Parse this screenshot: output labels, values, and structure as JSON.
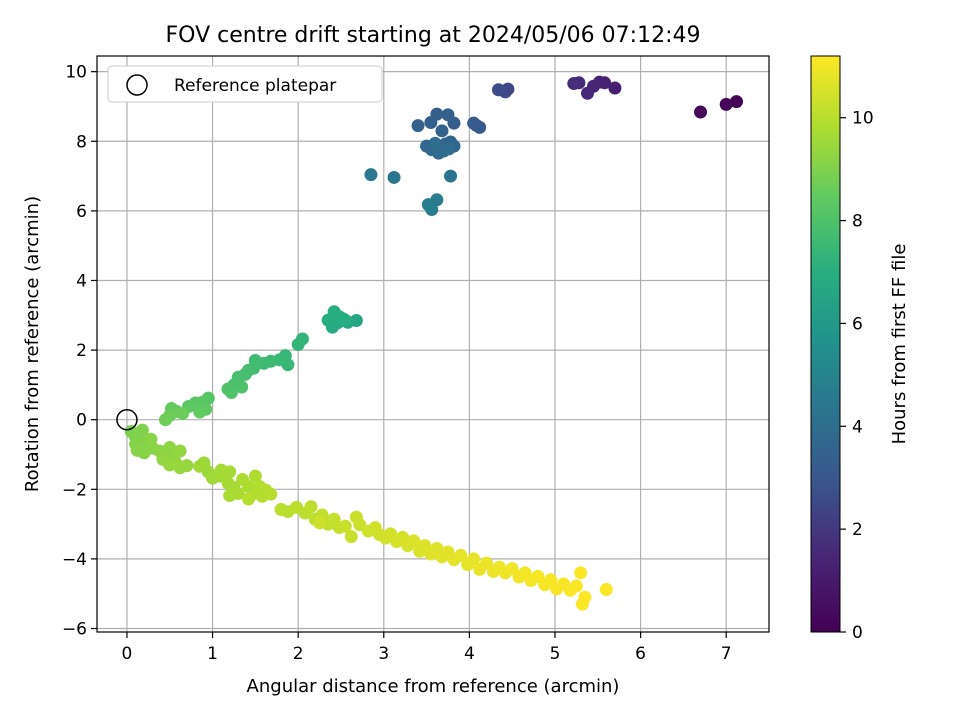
{
  "chart_data": {
    "type": "scatter",
    "title": "FOV centre drift starting at 2024/05/06 07:12:49",
    "xlabel": "Angular distance from reference (arcmin)",
    "ylabel": "Rotation from reference (arcmin)",
    "xlim": [
      -0.35,
      7.5
    ],
    "ylim": [
      -6.1,
      10.45
    ],
    "xticks": [
      0,
      1,
      2,
      3,
      4,
      5,
      6,
      7
    ],
    "yticks": [
      -6,
      -4,
      -2,
      0,
      2,
      4,
      6,
      8,
      10
    ],
    "grid": true,
    "legend": {
      "position": "top-left",
      "entries": [
        "Reference platepar"
      ]
    },
    "reference_point": {
      "x": 0,
      "y": 0
    },
    "colorbar": {
      "label": "Hours from first FF file",
      "range": [
        0,
        11.2
      ],
      "ticks": [
        0,
        2,
        4,
        6,
        8,
        10
      ],
      "colormap": "viridis"
    },
    "points": [
      {
        "x": 7.12,
        "y": 9.14,
        "h": 0.1
      },
      {
        "x": 7.0,
        "y": 9.06,
        "h": 0.2
      },
      {
        "x": 6.7,
        "y": 8.84,
        "h": 0.35
      },
      {
        "x": 5.7,
        "y": 9.53,
        "h": 1.2
      },
      {
        "x": 5.58,
        "y": 9.68,
        "h": 1.3
      },
      {
        "x": 5.52,
        "y": 9.7,
        "h": 1.35
      },
      {
        "x": 5.45,
        "y": 9.58,
        "h": 1.45
      },
      {
        "x": 5.38,
        "y": 9.38,
        "h": 1.5
      },
      {
        "x": 5.28,
        "y": 9.68,
        "h": 1.6
      },
      {
        "x": 5.22,
        "y": 9.66,
        "h": 1.7
      },
      {
        "x": 4.45,
        "y": 9.5,
        "h": 2.4
      },
      {
        "x": 4.42,
        "y": 9.42,
        "h": 2.5
      },
      {
        "x": 4.34,
        "y": 9.48,
        "h": 2.6
      },
      {
        "x": 4.12,
        "y": 8.4,
        "h": 3.1
      },
      {
        "x": 4.08,
        "y": 8.46,
        "h": 3.15
      },
      {
        "x": 4.05,
        "y": 8.52,
        "h": 3.2
      },
      {
        "x": 3.82,
        "y": 8.52,
        "h": 3.3
      },
      {
        "x": 3.75,
        "y": 8.76,
        "h": 3.35
      },
      {
        "x": 3.62,
        "y": 8.78,
        "h": 3.4
      },
      {
        "x": 3.55,
        "y": 8.54,
        "h": 3.45
      },
      {
        "x": 3.4,
        "y": 8.45,
        "h": 3.5
      },
      {
        "x": 3.68,
        "y": 8.3,
        "h": 3.55
      },
      {
        "x": 3.78,
        "y": 7.98,
        "h": 3.6
      },
      {
        "x": 3.72,
        "y": 7.92,
        "h": 3.65
      },
      {
        "x": 3.82,
        "y": 7.86,
        "h": 3.7
      },
      {
        "x": 3.5,
        "y": 7.86,
        "h": 3.75
      },
      {
        "x": 3.56,
        "y": 7.76,
        "h": 3.8
      },
      {
        "x": 3.64,
        "y": 7.66,
        "h": 3.85
      },
      {
        "x": 3.7,
        "y": 7.72,
        "h": 3.9
      },
      {
        "x": 3.76,
        "y": 7.78,
        "h": 3.95
      },
      {
        "x": 3.6,
        "y": 7.94,
        "h": 4.0
      },
      {
        "x": 3.78,
        "y": 7.0,
        "h": 4.3
      },
      {
        "x": 3.12,
        "y": 6.96,
        "h": 4.4
      },
      {
        "x": 2.85,
        "y": 7.04,
        "h": 4.5
      },
      {
        "x": 3.62,
        "y": 6.32,
        "h": 4.6
      },
      {
        "x": 3.52,
        "y": 6.18,
        "h": 4.7
      },
      {
        "x": 3.56,
        "y": 6.04,
        "h": 4.8
      },
      {
        "x": 2.68,
        "y": 2.85,
        "h": 6.6
      },
      {
        "x": 2.58,
        "y": 2.8,
        "h": 6.65
      },
      {
        "x": 2.52,
        "y": 2.9,
        "h": 6.7
      },
      {
        "x": 2.46,
        "y": 2.78,
        "h": 6.75
      },
      {
        "x": 2.4,
        "y": 2.66,
        "h": 6.8
      },
      {
        "x": 2.35,
        "y": 2.86,
        "h": 6.85
      },
      {
        "x": 2.42,
        "y": 3.1,
        "h": 6.9
      },
      {
        "x": 2.48,
        "y": 2.96,
        "h": 6.95
      },
      {
        "x": 2.55,
        "y": 2.86,
        "h": 7.0
      },
      {
        "x": 2.05,
        "y": 2.32,
        "h": 7.3
      },
      {
        "x": 2.0,
        "y": 2.16,
        "h": 7.35
      },
      {
        "x": 1.85,
        "y": 1.84,
        "h": 7.4
      },
      {
        "x": 1.88,
        "y": 1.58,
        "h": 7.45
      },
      {
        "x": 1.78,
        "y": 1.72,
        "h": 7.5
      },
      {
        "x": 1.68,
        "y": 1.68,
        "h": 7.55
      },
      {
        "x": 1.6,
        "y": 1.62,
        "h": 7.6
      },
      {
        "x": 1.5,
        "y": 1.7,
        "h": 7.65
      },
      {
        "x": 1.48,
        "y": 1.48,
        "h": 7.7
      },
      {
        "x": 1.42,
        "y": 1.42,
        "h": 7.75
      },
      {
        "x": 1.38,
        "y": 1.3,
        "h": 7.8
      },
      {
        "x": 1.3,
        "y": 1.22,
        "h": 7.85
      },
      {
        "x": 1.25,
        "y": 1.0,
        "h": 7.9
      },
      {
        "x": 1.34,
        "y": 0.94,
        "h": 7.95
      },
      {
        "x": 1.18,
        "y": 0.88,
        "h": 8.0
      },
      {
        "x": 1.22,
        "y": 0.78,
        "h": 8.05
      },
      {
        "x": 0.95,
        "y": 0.62,
        "h": 8.2
      },
      {
        "x": 0.88,
        "y": 0.5,
        "h": 8.25
      },
      {
        "x": 0.8,
        "y": 0.48,
        "h": 8.3
      },
      {
        "x": 0.72,
        "y": 0.38,
        "h": 8.35
      },
      {
        "x": 0.92,
        "y": 0.3,
        "h": 8.4
      },
      {
        "x": 0.85,
        "y": 0.22,
        "h": 8.45
      },
      {
        "x": 0.52,
        "y": 0.32,
        "h": 8.5
      },
      {
        "x": 0.58,
        "y": 0.24,
        "h": 8.55
      },
      {
        "x": 0.65,
        "y": 0.18,
        "h": 8.6
      },
      {
        "x": 0.5,
        "y": 0.12,
        "h": 8.65
      },
      {
        "x": 0.45,
        "y": 0.0,
        "h": 8.7
      },
      {
        "x": 0.05,
        "y": -0.34,
        "h": 8.9
      },
      {
        "x": 0.1,
        "y": -0.5,
        "h": 8.95
      },
      {
        "x": 0.15,
        "y": -0.4,
        "h": 9.0
      },
      {
        "x": 0.18,
        "y": -0.3,
        "h": 9.02
      },
      {
        "x": 0.1,
        "y": -0.7,
        "h": 9.05
      },
      {
        "x": 0.22,
        "y": -0.6,
        "h": 9.08
      },
      {
        "x": 0.12,
        "y": -0.88,
        "h": 9.1
      },
      {
        "x": 0.2,
        "y": -0.95,
        "h": 9.12
      },
      {
        "x": 0.3,
        "y": -0.82,
        "h": 9.15
      },
      {
        "x": 0.28,
        "y": -0.56,
        "h": 9.18
      },
      {
        "x": 0.38,
        "y": -0.9,
        "h": 9.2
      },
      {
        "x": 0.45,
        "y": -1.0,
        "h": 9.22
      },
      {
        "x": 0.5,
        "y": -0.8,
        "h": 9.25
      },
      {
        "x": 0.55,
        "y": -1.1,
        "h": 9.28
      },
      {
        "x": 0.42,
        "y": -1.14,
        "h": 9.3
      },
      {
        "x": 0.58,
        "y": -1.28,
        "h": 9.32
      },
      {
        "x": 0.62,
        "y": -0.9,
        "h": 9.35
      },
      {
        "x": 0.7,
        "y": -1.32,
        "h": 9.38
      },
      {
        "x": 0.5,
        "y": -1.3,
        "h": 9.4
      },
      {
        "x": 0.62,
        "y": -1.38,
        "h": 9.42
      },
      {
        "x": 0.9,
        "y": -1.24,
        "h": 9.5
      },
      {
        "x": 0.95,
        "y": -1.5,
        "h": 9.52
      },
      {
        "x": 0.85,
        "y": -1.34,
        "h": 9.55
      },
      {
        "x": 1.0,
        "y": -1.68,
        "h": 9.58
      },
      {
        "x": 1.08,
        "y": -1.62,
        "h": 9.6
      },
      {
        "x": 1.1,
        "y": -1.45,
        "h": 9.62
      },
      {
        "x": 1.2,
        "y": -1.5,
        "h": 9.65
      },
      {
        "x": 1.18,
        "y": -1.82,
        "h": 9.68
      },
      {
        "x": 1.25,
        "y": -1.95,
        "h": 9.7
      },
      {
        "x": 1.2,
        "y": -2.18,
        "h": 9.72
      },
      {
        "x": 1.3,
        "y": -2.12,
        "h": 9.75
      },
      {
        "x": 1.35,
        "y": -1.72,
        "h": 9.78
      },
      {
        "x": 1.42,
        "y": -1.92,
        "h": 9.8
      },
      {
        "x": 1.48,
        "y": -2.12,
        "h": 9.82
      },
      {
        "x": 1.5,
        "y": -1.62,
        "h": 9.85
      },
      {
        "x": 1.55,
        "y": -1.92,
        "h": 9.88
      },
      {
        "x": 1.62,
        "y": -2.02,
        "h": 9.9
      },
      {
        "x": 1.58,
        "y": -2.2,
        "h": 9.92
      },
      {
        "x": 1.68,
        "y": -2.14,
        "h": 9.95
      },
      {
        "x": 1.42,
        "y": -2.28,
        "h": 9.97
      },
      {
        "x": 1.8,
        "y": -2.58,
        "h": 10.0
      },
      {
        "x": 1.88,
        "y": -2.64,
        "h": 10.02
      },
      {
        "x": 1.98,
        "y": -2.52,
        "h": 10.05
      },
      {
        "x": 2.08,
        "y": -2.68,
        "h": 10.08
      },
      {
        "x": 2.15,
        "y": -2.5,
        "h": 10.1
      },
      {
        "x": 2.2,
        "y": -2.86,
        "h": 10.12
      },
      {
        "x": 2.28,
        "y": -2.74,
        "h": 10.15
      },
      {
        "x": 2.35,
        "y": -3.0,
        "h": 10.18
      },
      {
        "x": 2.42,
        "y": -2.86,
        "h": 10.2
      },
      {
        "x": 2.48,
        "y": -3.1,
        "h": 10.22
      },
      {
        "x": 2.55,
        "y": -3.06,
        "h": 10.25
      },
      {
        "x": 2.62,
        "y": -3.36,
        "h": 10.28
      },
      {
        "x": 2.68,
        "y": -2.8,
        "h": 10.3
      },
      {
        "x": 2.72,
        "y": -3.02,
        "h": 10.32
      },
      {
        "x": 2.25,
        "y": -2.96,
        "h": 10.35
      },
      {
        "x": 2.82,
        "y": -3.2,
        "h": 10.38
      },
      {
        "x": 2.9,
        "y": -3.1,
        "h": 10.4
      },
      {
        "x": 2.95,
        "y": -3.3,
        "h": 10.42
      },
      {
        "x": 3.02,
        "y": -3.4,
        "h": 10.45
      },
      {
        "x": 3.08,
        "y": -3.28,
        "h": 10.48
      },
      {
        "x": 3.15,
        "y": -3.5,
        "h": 10.5
      },
      {
        "x": 3.22,
        "y": -3.38,
        "h": 10.52
      },
      {
        "x": 3.28,
        "y": -3.62,
        "h": 10.55
      },
      {
        "x": 3.35,
        "y": -3.48,
        "h": 10.58
      },
      {
        "x": 3.42,
        "y": -3.78,
        "h": 10.6
      },
      {
        "x": 3.48,
        "y": -3.62,
        "h": 10.62
      },
      {
        "x": 3.55,
        "y": -3.86,
        "h": 10.65
      },
      {
        "x": 3.62,
        "y": -3.7,
        "h": 10.68
      },
      {
        "x": 3.68,
        "y": -3.94,
        "h": 10.7
      },
      {
        "x": 3.75,
        "y": -3.8,
        "h": 10.72
      },
      {
        "x": 3.82,
        "y": -4.02,
        "h": 10.75
      },
      {
        "x": 3.9,
        "y": -3.9,
        "h": 10.78
      },
      {
        "x": 3.98,
        "y": -4.16,
        "h": 10.8
      },
      {
        "x": 4.05,
        "y": -4.0,
        "h": 10.82
      },
      {
        "x": 4.12,
        "y": -4.3,
        "h": 10.85
      },
      {
        "x": 4.2,
        "y": -4.12,
        "h": 10.88
      },
      {
        "x": 4.28,
        "y": -4.36,
        "h": 10.9
      },
      {
        "x": 4.35,
        "y": -4.24,
        "h": 10.92
      },
      {
        "x": 4.42,
        "y": -4.4,
        "h": 10.95
      },
      {
        "x": 4.5,
        "y": -4.28,
        "h": 10.97
      },
      {
        "x": 4.58,
        "y": -4.52,
        "h": 11.0
      },
      {
        "x": 4.65,
        "y": -4.4,
        "h": 11.02
      },
      {
        "x": 4.72,
        "y": -4.62,
        "h": 11.04
      },
      {
        "x": 4.8,
        "y": -4.5,
        "h": 11.06
      },
      {
        "x": 4.88,
        "y": -4.74,
        "h": 11.08
      },
      {
        "x": 4.95,
        "y": -4.6,
        "h": 11.1
      },
      {
        "x": 5.02,
        "y": -4.86,
        "h": 11.11
      },
      {
        "x": 5.1,
        "y": -4.72,
        "h": 11.12
      },
      {
        "x": 5.18,
        "y": -4.9,
        "h": 11.13
      },
      {
        "x": 5.25,
        "y": -4.78,
        "h": 11.14
      },
      {
        "x": 5.32,
        "y": -5.3,
        "h": 11.15
      },
      {
        "x": 5.35,
        "y": -5.1,
        "h": 11.16
      },
      {
        "x": 5.3,
        "y": -4.4,
        "h": 11.17
      },
      {
        "x": 5.6,
        "y": -4.88,
        "h": 11.2
      }
    ]
  }
}
